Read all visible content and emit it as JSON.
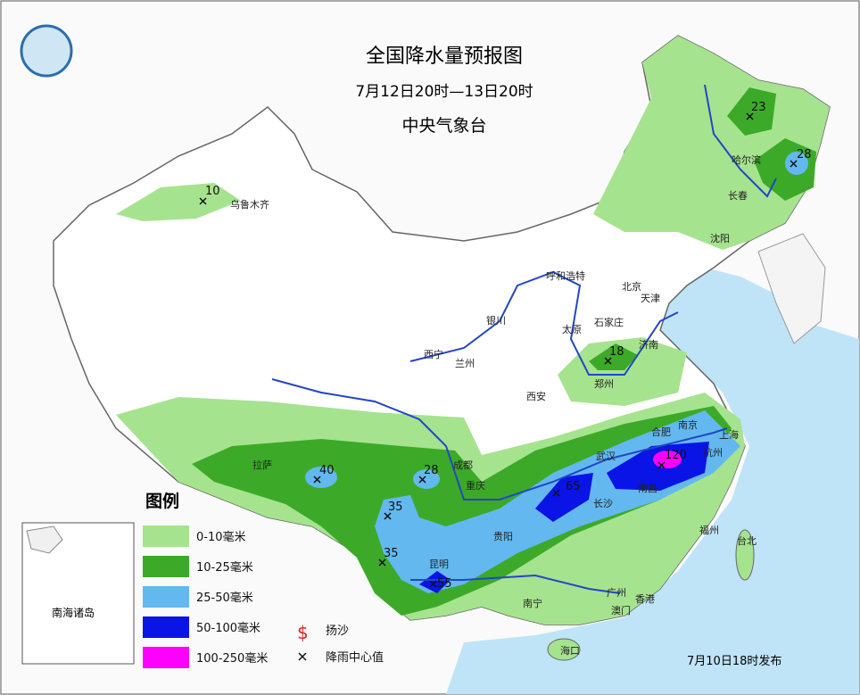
{
  "header": {
    "title": "全国降水量预报图",
    "subtitle": "7月12日20时—13日20时",
    "issuer": "中央气象台"
  },
  "cities": [
    "乌鲁木齐",
    "哈尔滨",
    "长春",
    "沈阳",
    "呼和浩特",
    "北京",
    "天津",
    "石家庄",
    "太原",
    "济南",
    "郑州",
    "银川",
    "西宁",
    "兰州",
    "西安",
    "拉萨",
    "成都",
    "重庆",
    "贵阳",
    "昆明",
    "南宁",
    "长沙",
    "武汉",
    "合肥",
    "南京",
    "上海",
    "杭州",
    "南昌",
    "福州",
    "台北",
    "广州",
    "香港",
    "澳门",
    "海口"
  ],
  "rain_centers": [
    10,
    23,
    28,
    18,
    40,
    28,
    35,
    35,
    55,
    65,
    120
  ],
  "legend": {
    "title": "图例",
    "items": [
      "0-10毫米",
      "10-25毫米",
      "25-50毫米",
      "50-100毫米",
      "100-250毫米"
    ],
    "symbols": [
      "扬沙",
      "降雨中心值"
    ]
  },
  "inset_label": "南海诸岛",
  "footer": "7月10日18时发布"
}
